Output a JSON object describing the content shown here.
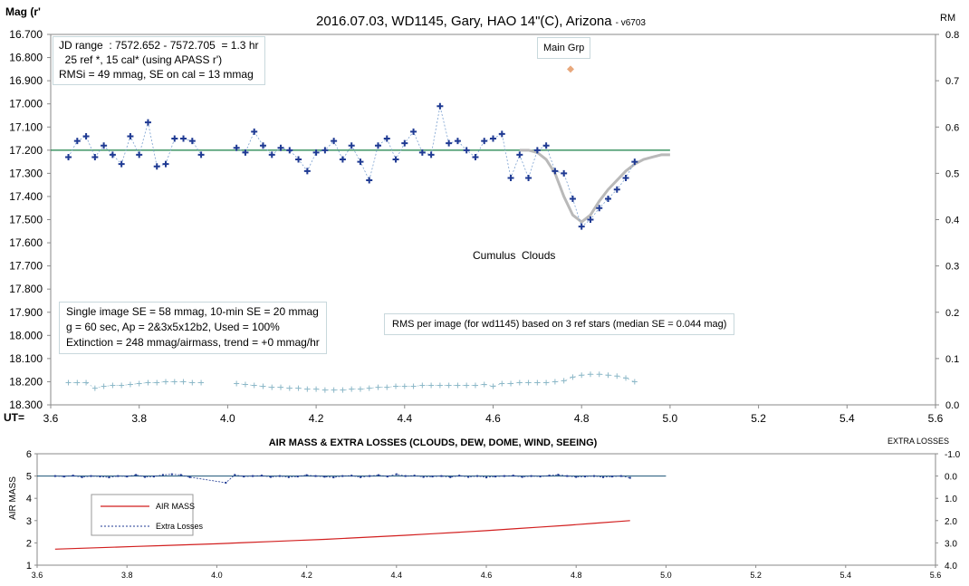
{
  "chart_data": [
    {
      "type": "scatter",
      "title": "2016.07.03,  WD1145, Gary, HAO  14\"(C), Arizona",
      "title_suffix": "- v6703",
      "ylabel": "Mag (r'",
      "y2label": "RM",
      "xaxis_label": "UT=",
      "xlim": [
        3.6,
        5.6
      ],
      "ylim": [
        16.7,
        18.3
      ],
      "y_inverted": true,
      "y2lim": [
        0.0,
        0.8
      ],
      "xticks": [
        "3.6",
        "3.8",
        "4.0",
        "4.2",
        "4.4",
        "4.6",
        "4.8",
        "5.0",
        "5.2",
        "5.4",
        "5.6"
      ],
      "yticks": [
        "16.700",
        "16.800",
        "16.900",
        "17.000",
        "17.100",
        "17.200",
        "17.300",
        "17.400",
        "17.500",
        "17.600",
        "17.700",
        "17.800",
        "17.900",
        "18.000",
        "18.100",
        "18.200",
        "18.300"
      ],
      "y2ticks": [
        "0.8",
        "0.7",
        "0.6",
        "0.5",
        "0.4",
        "0.3",
        "0.2",
        "0.1",
        "0.0"
      ],
      "grid": false,
      "reference_level": 17.2,
      "series": [
        {
          "color": "#1f3a93",
          "marker": "plus",
          "x": [
            3.64,
            3.66,
            3.68,
            3.7,
            3.72,
            3.74,
            3.76,
            3.78,
            3.8,
            3.82,
            3.84,
            3.86,
            3.88,
            3.9,
            3.92,
            3.94,
            4.02,
            4.04,
            4.06,
            4.08,
            4.1,
            4.12,
            4.14,
            4.16,
            4.18,
            4.2,
            4.22,
            4.24,
            4.26,
            4.28,
            4.3,
            4.32,
            4.34,
            4.36,
            4.38,
            4.4,
            4.42,
            4.44,
            4.46,
            4.48,
            4.5,
            4.52,
            4.54,
            4.56,
            4.58,
            4.6,
            4.62,
            4.64,
            4.66,
            4.68,
            4.7,
            4.72,
            4.74,
            4.76,
            4.78,
            4.8,
            4.82,
            4.84,
            4.86,
            4.88,
            4.9,
            4.92
          ],
          "y": [
            17.23,
            17.16,
            17.14,
            17.23,
            17.18,
            17.22,
            17.26,
            17.14,
            17.22,
            17.08,
            17.27,
            17.26,
            17.15,
            17.15,
            17.16,
            17.22,
            17.19,
            17.21,
            17.12,
            17.18,
            17.22,
            17.19,
            17.2,
            17.24,
            17.29,
            17.21,
            17.2,
            17.16,
            17.24,
            17.18,
            17.25,
            17.33,
            17.18,
            17.15,
            17.24,
            17.17,
            17.12,
            17.21,
            17.22,
            17.01,
            17.17,
            17.16,
            17.2,
            17.23,
            17.16,
            17.15,
            17.13,
            17.32,
            17.22,
            17.32,
            17.2,
            17.18,
            17.29,
            17.3,
            17.41,
            17.53,
            17.5,
            17.45,
            17.41,
            17.37,
            17.32,
            17.25
          ]
        },
        {
          "color": "#b9b9b9",
          "type": "line",
          "x": [
            4.66,
            4.68,
            4.7,
            4.72,
            4.74,
            4.76,
            4.78,
            4.8,
            4.82,
            4.84,
            4.86,
            4.88,
            4.9,
            4.92,
            4.94,
            4.96,
            4.98,
            5.0
          ],
          "y": [
            17.2,
            17.2,
            17.21,
            17.24,
            17.3,
            17.4,
            17.48,
            17.51,
            17.48,
            17.42,
            17.37,
            17.33,
            17.29,
            17.26,
            17.24,
            17.23,
            17.22,
            17.22
          ]
        },
        {
          "name": "Main Grp",
          "color": "#e8a87c",
          "marker": "diamond",
          "x": [
            4.775
          ],
          "y": [
            16.85
          ]
        },
        {
          "axis": "y2",
          "color": "#8cb8c8",
          "marker": "plus",
          "x": [
            3.64,
            3.66,
            3.68,
            3.7,
            3.72,
            3.74,
            3.76,
            3.78,
            3.8,
            3.82,
            3.84,
            3.86,
            3.88,
            3.9,
            3.92,
            3.94,
            4.02,
            4.04,
            4.06,
            4.08,
            4.1,
            4.12,
            4.14,
            4.16,
            4.18,
            4.2,
            4.22,
            4.24,
            4.26,
            4.28,
            4.3,
            4.32,
            4.34,
            4.36,
            4.38,
            4.4,
            4.42,
            4.44,
            4.46,
            4.48,
            4.5,
            4.52,
            4.54,
            4.56,
            4.58,
            4.6,
            4.62,
            4.64,
            4.66,
            4.68,
            4.7,
            4.72,
            4.74,
            4.76,
            4.78,
            4.8,
            4.82,
            4.84,
            4.86,
            4.88,
            4.9,
            4.92
          ],
          "y": [
            0.048,
            0.048,
            0.048,
            0.036,
            0.04,
            0.042,
            0.042,
            0.044,
            0.046,
            0.048,
            0.048,
            0.05,
            0.05,
            0.05,
            0.048,
            0.048,
            0.046,
            0.044,
            0.042,
            0.04,
            0.038,
            0.038,
            0.036,
            0.036,
            0.034,
            0.034,
            0.032,
            0.032,
            0.032,
            0.034,
            0.034,
            0.036,
            0.038,
            0.038,
            0.04,
            0.04,
            0.04,
            0.042,
            0.042,
            0.042,
            0.042,
            0.042,
            0.042,
            0.042,
            0.044,
            0.04,
            0.046,
            0.046,
            0.048,
            0.048,
            0.048,
            0.048,
            0.05,
            0.052,
            0.06,
            0.064,
            0.066,
            0.066,
            0.064,
            0.062,
            0.058,
            0.05
          ]
        }
      ],
      "annotations": {
        "main_grp": "Main Grp",
        "clouds": "Cumulus  Clouds",
        "info_box_1": [
          "JD range  : 7572.652 - 7572.705  = 1.3 hr",
          "  25 ref *, 15 cal* (using APASS r')",
          "RMSi = 49 mmag, SE on cal = 13 mmag"
        ],
        "info_box_2": [
          "Single image SE = 58 mmag, 10-min SE = 20 mmag",
          "g = 60 sec, Ap = 2&3x5x12b2, Used = 100%",
          "Extinction = 248 mmag/airmass, trend = +0 mmag/hr"
        ],
        "rms_note": "RMS per image (for wd1145) based on 3 ref stars (median SE = 0.044 mag)"
      },
      "colors": {
        "data": "#1f3a93",
        "reference_line": "#2e8b57",
        "model": "#b9b9b9",
        "rms": "#8cb8c8",
        "main_grp": "#e8a87c",
        "box_border": "#c8d8dc"
      }
    },
    {
      "type": "line",
      "title": "AIR MASS & EXTRA LOSSES (CLOUDS, DEW, DOME, WIND, SEEING)",
      "ylabel": "AIR MASS",
      "y2label": "EXTRA LOSSES",
      "xlim": [
        3.6,
        5.6
      ],
      "ylim": [
        1,
        6
      ],
      "y2lim": [
        -1.0,
        4.0
      ],
      "y2_inverted": true,
      "xticks": [
        "3.6",
        "3.8",
        "4.0",
        "4.2",
        "4.4",
        "4.6",
        "4.8",
        "5.0",
        "5.2",
        "5.4",
        "5.6"
      ],
      "yticks": [
        "1",
        "2",
        "3",
        "4",
        "5",
        "6"
      ],
      "y2ticks": [
        "-1.0",
        "0.0",
        "1.0",
        "2.0",
        "3.0",
        "4.0"
      ],
      "grid": false,
      "legend": "left",
      "reference_level": 0.0,
      "series": [
        {
          "name": "AIR MASS",
          "color": "#d21f1f",
          "x": [
            3.64,
            3.7,
            3.76,
            3.82,
            3.88,
            3.94,
            4.0,
            4.06,
            4.12,
            4.18,
            4.24,
            4.3,
            4.36,
            4.42,
            4.48,
            4.54,
            4.6,
            4.66,
            4.72,
            4.78,
            4.84,
            4.9,
            4.92
          ],
          "y": [
            1.72,
            1.76,
            1.8,
            1.84,
            1.88,
            1.92,
            1.96,
            2.01,
            2.06,
            2.11,
            2.16,
            2.22,
            2.28,
            2.34,
            2.41,
            2.48,
            2.55,
            2.63,
            2.71,
            2.79,
            2.88,
            2.97,
            3.0
          ]
        },
        {
          "name": "Extra Losses",
          "color": "#1f3a93",
          "axis": "y2",
          "x": [
            3.64,
            3.66,
            3.68,
            3.7,
            3.72,
            3.74,
            3.76,
            3.78,
            3.8,
            3.82,
            3.84,
            3.86,
            3.88,
            3.9,
            3.92,
            3.94,
            4.02,
            4.04,
            4.06,
            4.08,
            4.1,
            4.12,
            4.14,
            4.16,
            4.18,
            4.2,
            4.22,
            4.24,
            4.26,
            4.28,
            4.3,
            4.32,
            4.34,
            4.36,
            4.38,
            4.4,
            4.42,
            4.44,
            4.46,
            4.48,
            4.5,
            4.52,
            4.54,
            4.56,
            4.58,
            4.6,
            4.62,
            4.64,
            4.66,
            4.68,
            4.7,
            4.72,
            4.74,
            4.76,
            4.78,
            4.8,
            4.82,
            4.84,
            4.86,
            4.88,
            4.9,
            4.92
          ],
          "y": [
            0.0,
            0.02,
            -0.02,
            0.05,
            0.0,
            0.02,
            0.06,
            0.0,
            0.02,
            -0.05,
            0.04,
            0.02,
            -0.05,
            -0.08,
            -0.05,
            0.05,
            0.3,
            -0.05,
            0.02,
            0.0,
            -0.02,
            0.04,
            0.0,
            0.05,
            0.02,
            -0.04,
            0.0,
            0.03,
            0.06,
            0.0,
            -0.02,
            0.05,
            0.0,
            -0.04,
            0.02,
            -0.08,
            0.0,
            -0.02,
            0.04,
            0.02,
            0.0,
            0.05,
            -0.02,
            0.04,
            0.0,
            0.06,
            0.02,
            0.0,
            -0.02,
            0.04,
            0.0,
            0.02,
            -0.02,
            -0.06,
            0.0,
            0.04,
            0.02,
            0.0,
            0.05,
            0.02,
            0.0,
            0.08
          ]
        }
      ],
      "colors": {
        "reference_line": "#1a5276",
        "legend_border": "#999999"
      }
    }
  ]
}
